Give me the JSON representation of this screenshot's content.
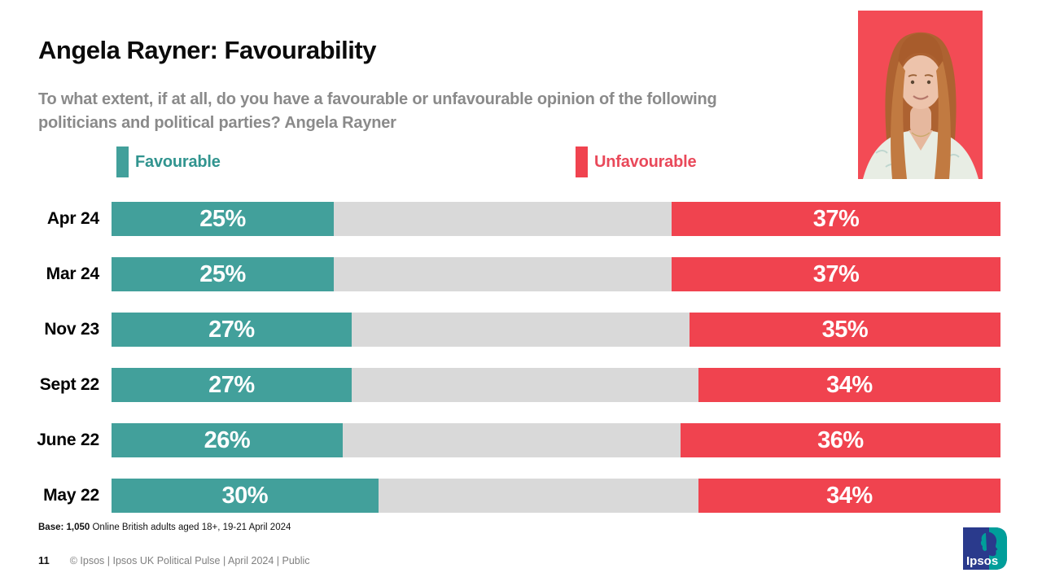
{
  "page": {
    "title": "Angela Rayner: Favourability",
    "subtitle": "To what extent, if at all, do you have a favourable or unfavourable opinion of the following politicians and political parties? Angela Rayner",
    "page_number": "11",
    "footer_text": "© Ipsos |  Ipsos UK Political Pulse | April 2024 | Public",
    "base_bold": "Base: 1,050",
    "base_rest": " Online British adults aged 18+,  19-21 April 2024"
  },
  "legend": {
    "favourable_label": "Favourable",
    "unfavourable_label": "Unfavourable"
  },
  "colors": {
    "favourable_bar": "#42A09B",
    "unfavourable_bar": "#F0434F",
    "neutral_bar": "#D9D9D9",
    "favourable_text": "#31948F",
    "unfavourable_text": "#E9495A",
    "photo_background": "#F34B55",
    "logo_navy": "#2A3A8C",
    "logo_teal": "#009E9A"
  },
  "logo": {
    "text": "Ipsos"
  },
  "photo": {
    "name": "angela-rayner-portrait"
  },
  "chart_data": {
    "type": "bar",
    "orientation": "horizontal-stacked",
    "title": "Angela Rayner: Favourability",
    "categories": [
      "Apr 24",
      "Mar 24",
      "Nov 23",
      "Sept 22",
      "June 22",
      "May 22"
    ],
    "series": [
      {
        "name": "Favourable",
        "color": "#42A09B",
        "values": [
          25,
          25,
          27,
          27,
          26,
          30
        ]
      },
      {
        "name": "Unfavourable",
        "color": "#F0434F",
        "values": [
          37,
          37,
          35,
          34,
          36,
          34
        ]
      }
    ],
    "neutral_remainder_color": "#D9D9D9",
    "axis_max": 100,
    "value_suffix": "%",
    "value_labels": "inside-segments",
    "legend_position": "top"
  }
}
